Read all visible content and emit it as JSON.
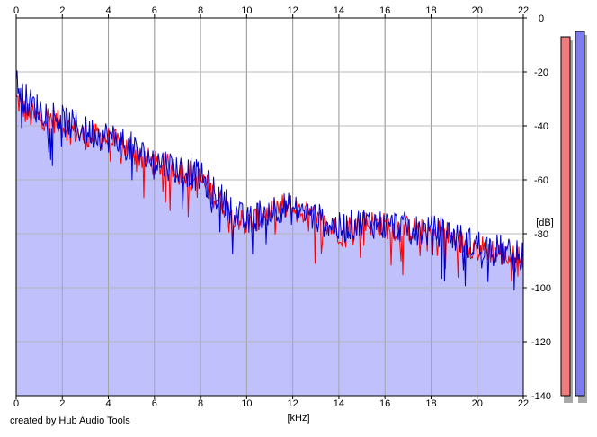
{
  "credit": "created by Hub Audio Tools",
  "chart_data": {
    "type": "area",
    "xlabel": "[kHz]",
    "ylabel": "[dB]",
    "xlim": [
      0,
      22
    ],
    "ylim": [
      -140,
      0
    ],
    "x_ticks": [
      0,
      2,
      4,
      6,
      8,
      10,
      12,
      14,
      16,
      18,
      20,
      22
    ],
    "y_ticks": [
      0,
      -20,
      -40,
      -60,
      -80,
      -100,
      -120,
      -140
    ],
    "x_tick_labels": [
      "0",
      "2",
      "4",
      "6",
      "8",
      "10",
      "12",
      "14",
      "16",
      "18",
      "20",
      "22"
    ],
    "y_tick_labels": [
      "0",
      "-20",
      "-40",
      "-60",
      "-80",
      "-100",
      "-120",
      "-140"
    ],
    "grid": true,
    "x_ticks_position": "top and bottom",
    "y_ticks_position": "right",
    "series": [
      {
        "color": "#ff0000",
        "x": [
          0,
          0.5,
          1,
          1.5,
          2,
          2.5,
          3,
          3.5,
          4,
          4.5,
          5,
          5.5,
          6,
          6.5,
          7,
          7.5,
          8,
          8.5,
          9,
          9.5,
          10,
          10.5,
          11,
          11.5,
          12,
          12.5,
          13,
          13.5,
          14,
          14.5,
          15,
          15.5,
          16,
          16.5,
          17,
          17.5,
          18,
          18.5,
          19,
          19.5,
          20,
          20.5,
          21,
          21.5,
          22
        ],
        "y": [
          -30,
          -36,
          -37,
          -37,
          -40,
          -42,
          -44,
          -44,
          -45,
          -47,
          -49,
          -52,
          -54,
          -55,
          -56,
          -57,
          -60,
          -65,
          -69,
          -73,
          -77,
          -74,
          -72,
          -70,
          -71,
          -72,
          -75,
          -77,
          -79,
          -77,
          -76,
          -76,
          -77,
          -78,
          -78,
          -79,
          -80,
          -79,
          -82,
          -84,
          -85,
          -86,
          -87,
          -89,
          -89
        ]
      },
      {
        "color": "#0000cc",
        "x": [
          0,
          0.5,
          1,
          1.5,
          2,
          2.5,
          3,
          3.5,
          4,
          4.5,
          5,
          5.5,
          6,
          6.5,
          7,
          7.5,
          8,
          8.5,
          9,
          9.5,
          10,
          10.5,
          11,
          11.5,
          12,
          12.5,
          13,
          13.5,
          14,
          14.5,
          15,
          15.5,
          16,
          16.5,
          17,
          17.5,
          18,
          18.5,
          19,
          19.5,
          20,
          20.5,
          21,
          21.5,
          22
        ],
        "y": [
          -24,
          -31,
          -34,
          -35,
          -38,
          -40,
          -42,
          -43,
          -44,
          -46,
          -48,
          -51,
          -53,
          -54,
          -56,
          -57,
          -59,
          -64,
          -68,
          -72,
          -76,
          -73,
          -71,
          -70,
          -71,
          -72,
          -74,
          -76,
          -78,
          -77,
          -76,
          -76,
          -77,
          -77,
          -78,
          -79,
          -79,
          -79,
          -81,
          -83,
          -84,
          -85,
          -86,
          -88,
          -88
        ]
      }
    ],
    "fill_color": "#c0c0fc",
    "meters": [
      {
        "color": "#f07c7c",
        "level": -7
      },
      {
        "color": "#7c7cf0",
        "level": -5
      }
    ]
  }
}
